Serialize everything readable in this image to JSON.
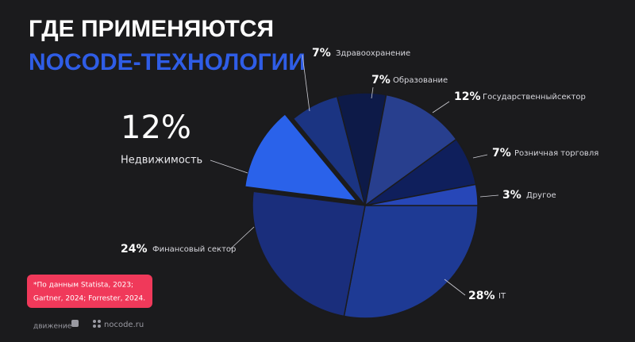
{
  "chart_data": {
    "type": "pie",
    "title": [
      "ГДЕ ПРИМЕНЯЮТСЯ",
      "NOCODE-ТЕХНОЛОГИИ"
    ],
    "categories": [
      "IT",
      "Финансовый сектор",
      "Недвижимость",
      "Здравоохранение",
      "Образование",
      "Государственныйсектор",
      "Розничная торговля",
      "Другое"
    ],
    "values": [
      28,
      24,
      12,
      7,
      7,
      12,
      7,
      3
    ],
    "value_labels": [
      "28%",
      "24%",
      "12%",
      "7%",
      "7%",
      "12%",
      "7%",
      "3%"
    ],
    "colors": [
      "#1e3a94",
      "#1a2e7c",
      "#2a62ea",
      "#1b3482",
      "#0d1a48",
      "#283f8e",
      "#0f1f5c",
      "#2747b8"
    ],
    "exploded": [
      false,
      false,
      true,
      false,
      false,
      false,
      false,
      false
    ],
    "source": [
      "*По данным Statista, 2023;",
      "Gartner, 2024; Forrester, 2024."
    ],
    "footer": [
      "движение",
      "nocode.ru"
    ]
  }
}
